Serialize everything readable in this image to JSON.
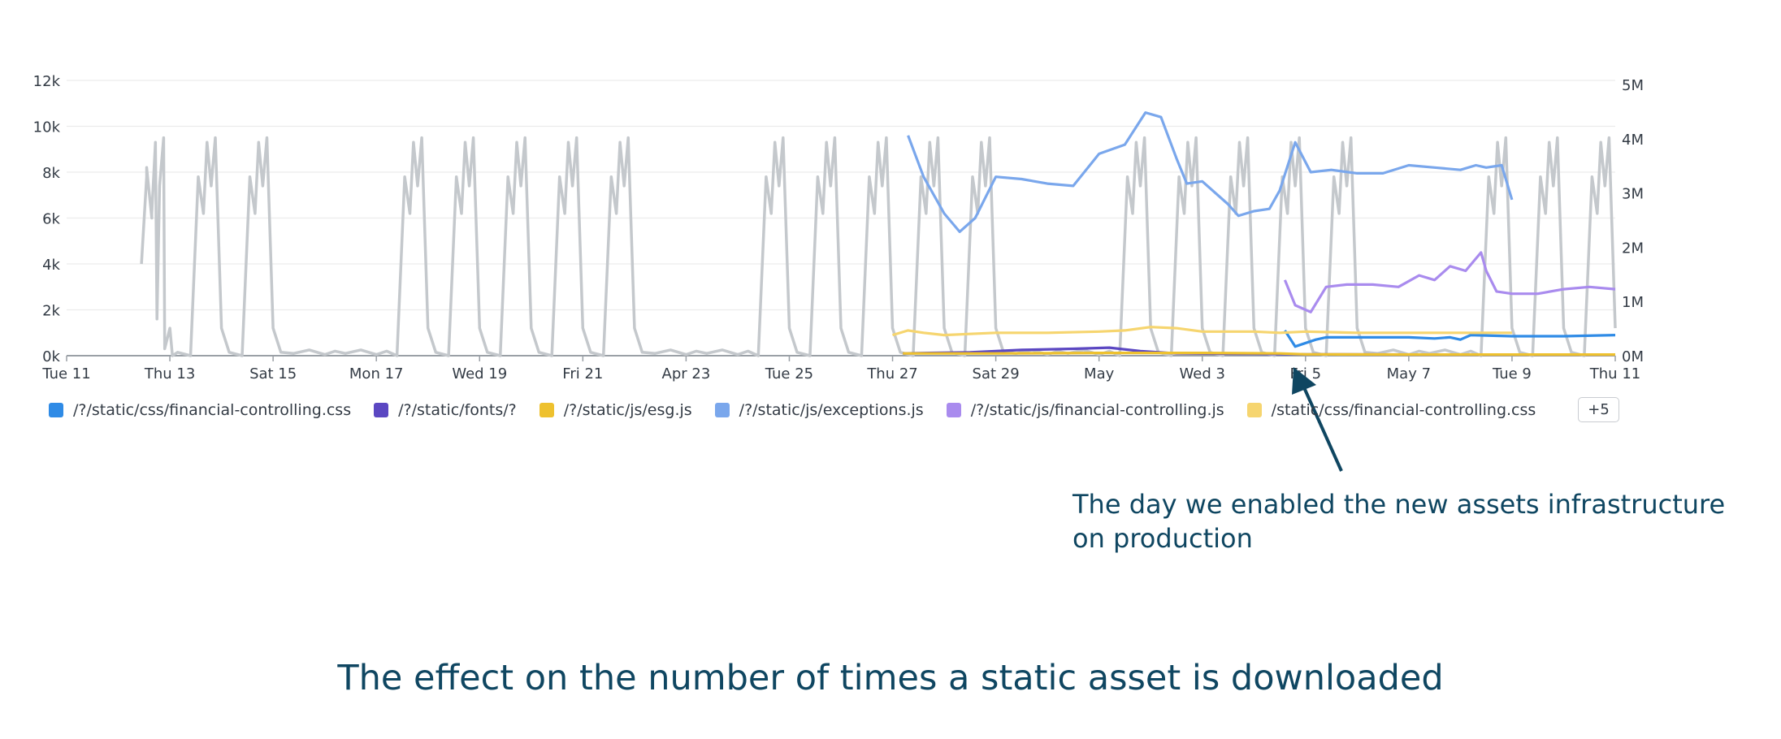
{
  "caption": "The effect on the number of times a static asset is downloaded",
  "annotation": "The day we enabled the new assets infrastructure on production",
  "legend_more": "+5",
  "chart_data": {
    "type": "line",
    "x_ticks": [
      "Tue 11",
      "Thu 13",
      "Sat 15",
      "Mon 17",
      "Wed 19",
      "Fri 21",
      "Apr 23",
      "Tue 25",
      "Thu 27",
      "Sat 29",
      "May",
      "Wed 3",
      "Fri 5",
      "May 7",
      "Tue 9",
      "Thu 11"
    ],
    "y_left_ticks": [
      "0k",
      "2k",
      "4k",
      "6k",
      "8k",
      "10k",
      "12k"
    ],
    "y_left_range": [
      0,
      12000
    ],
    "y_right_ticks": [
      "0M",
      "1M",
      "2M",
      "3M",
      "4M",
      "5M"
    ],
    "y_right_range": [
      0,
      5000000
    ],
    "x_range_days": [
      0,
      30
    ],
    "grid": true,
    "legend": "bottom-left",
    "series": [
      {
        "name": "/?/static/css/financial-controlling.css",
        "color": "#2f8be6",
        "axis": "left",
        "points": [
          [
            23.6,
            1100
          ],
          [
            23.8,
            400
          ],
          [
            24.2,
            700
          ],
          [
            24.4,
            800
          ],
          [
            25,
            800
          ],
          [
            26,
            800
          ],
          [
            26.5,
            750
          ],
          [
            26.8,
            800
          ],
          [
            27,
            700
          ],
          [
            27.2,
            900
          ],
          [
            28,
            850
          ],
          [
            29,
            850
          ],
          [
            30,
            900
          ]
        ]
      },
      {
        "name": "/?/static/fonts/?",
        "color": "#5b47c2",
        "axis": "left",
        "points": [
          [
            16.2,
            100
          ],
          [
            17.5,
            150
          ],
          [
            18.5,
            250
          ],
          [
            19.5,
            300
          ],
          [
            20.2,
            350
          ],
          [
            20.8,
            200
          ],
          [
            21.5,
            100
          ],
          [
            23,
            80
          ],
          [
            24,
            60
          ],
          [
            26,
            50
          ],
          [
            30,
            50
          ]
        ]
      },
      {
        "name": "/?/static/js/esg.js",
        "color": "#eec12e",
        "axis": "left",
        "points": [
          [
            16.2,
            100
          ],
          [
            18,
            100
          ],
          [
            20,
            120
          ],
          [
            22,
            120
          ],
          [
            23.5,
            100
          ],
          [
            24,
            60
          ],
          [
            26,
            50
          ],
          [
            30,
            50
          ]
        ]
      },
      {
        "name": "/?/static/js/exceptions.js",
        "color": "#7aa7ec",
        "axis": "left",
        "points": [
          [
            16.3,
            9600
          ],
          [
            16.6,
            7800
          ],
          [
            17,
            6200
          ],
          [
            17.3,
            5400
          ],
          [
            17.6,
            6000
          ],
          [
            18,
            7800
          ],
          [
            18.5,
            7700
          ],
          [
            19,
            7500
          ],
          [
            19.5,
            7400
          ],
          [
            20,
            8800
          ],
          [
            20.5,
            9200
          ],
          [
            20.9,
            10600
          ],
          [
            21.2,
            10400
          ],
          [
            21.5,
            8600
          ],
          [
            21.7,
            7500
          ],
          [
            22,
            7600
          ],
          [
            22.5,
            6600
          ],
          [
            22.7,
            6100
          ],
          [
            23,
            6300
          ],
          [
            23.3,
            6400
          ],
          [
            23.5,
            7200
          ],
          [
            23.8,
            9300
          ],
          [
            24.1,
            8000
          ],
          [
            24.5,
            8100
          ],
          [
            25,
            7950
          ],
          [
            25.5,
            7950
          ],
          [
            26,
            8300
          ],
          [
            26.5,
            8200
          ],
          [
            27,
            8100
          ],
          [
            27.3,
            8300
          ],
          [
            27.5,
            8200
          ],
          [
            27.8,
            8300
          ],
          [
            28,
            6800
          ]
        ]
      },
      {
        "name": "/?/static/js/financial-controlling.js",
        "color": "#a98bee",
        "axis": "left",
        "points": [
          [
            23.6,
            3300
          ],
          [
            23.8,
            2200
          ],
          [
            24.1,
            1900
          ],
          [
            24.4,
            3000
          ],
          [
            24.8,
            3100
          ],
          [
            25.3,
            3100
          ],
          [
            25.8,
            3000
          ],
          [
            26.2,
            3500
          ],
          [
            26.5,
            3300
          ],
          [
            26.8,
            3900
          ],
          [
            27.1,
            3700
          ],
          [
            27.4,
            4500
          ],
          [
            27.5,
            3700
          ],
          [
            27.7,
            2800
          ],
          [
            28,
            2700
          ],
          [
            28.5,
            2700
          ],
          [
            29,
            2900
          ],
          [
            29.5,
            3000
          ],
          [
            30,
            2900
          ]
        ]
      },
      {
        "name": "/static/css/financial-controlling.css",
        "color": "#f6d56f",
        "axis": "left",
        "points": [
          [
            16,
            900
          ],
          [
            16.3,
            1100
          ],
          [
            16.6,
            1000
          ],
          [
            17,
            900
          ],
          [
            17.5,
            950
          ],
          [
            18,
            1000
          ],
          [
            19,
            1000
          ],
          [
            20,
            1050
          ],
          [
            20.5,
            1100
          ],
          [
            21,
            1250
          ],
          [
            21.5,
            1200
          ],
          [
            22,
            1050
          ],
          [
            22.5,
            1050
          ],
          [
            23,
            1050
          ],
          [
            23.5,
            1000
          ],
          [
            24,
            1050
          ],
          [
            25,
            1000
          ],
          [
            26,
            1000
          ],
          [
            27,
            1000
          ],
          [
            28,
            1000
          ]
        ]
      }
    ],
    "background_series": {
      "color": "#c4c8cc",
      "axis": "left",
      "values_per_day": "weekday traffic peaks ~8k-10k, weekend/night ~0"
    }
  }
}
